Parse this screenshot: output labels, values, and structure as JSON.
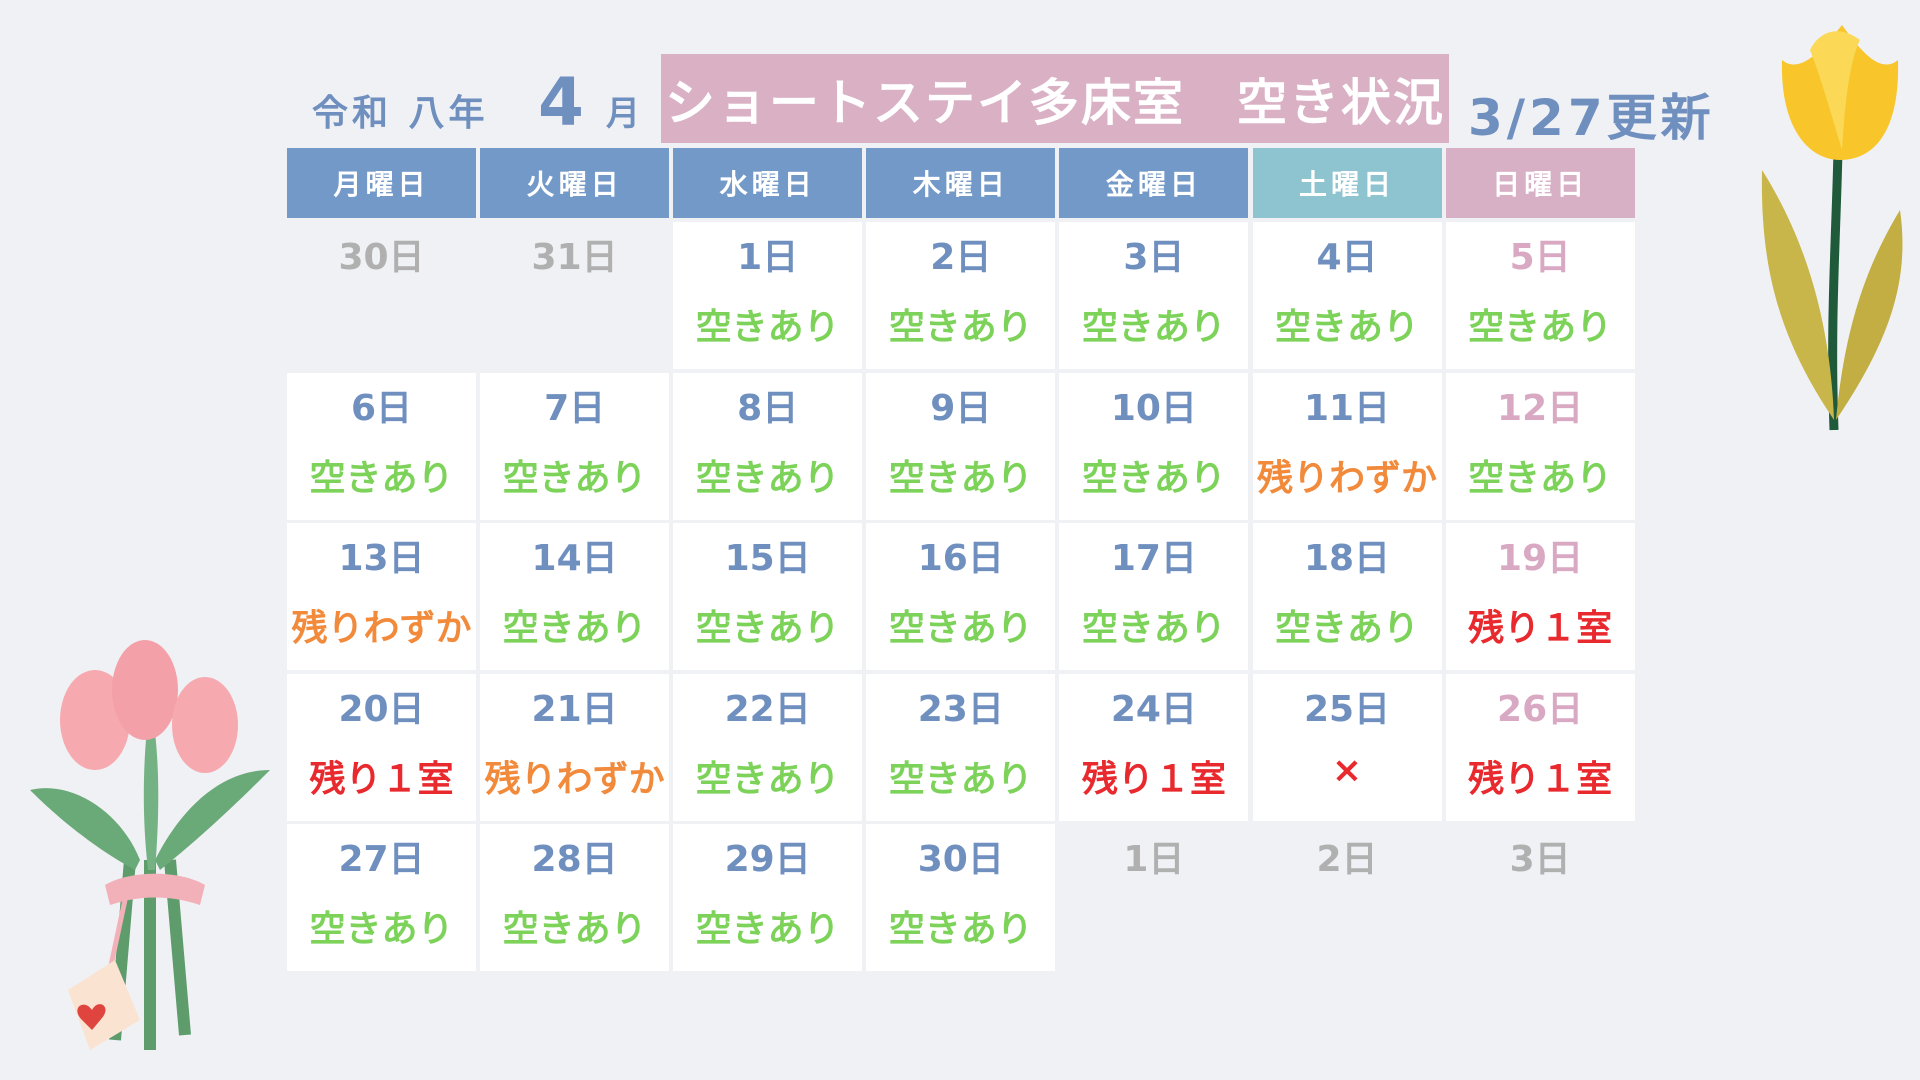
{
  "header": {
    "era": "令和 八年",
    "month_number": "4",
    "month_suffix": "月",
    "title": "ショートステイ多床室　空き状況",
    "updated": "3/27更新"
  },
  "weekdays": [
    "月曜日",
    "火曜日",
    "水曜日",
    "木曜日",
    "金曜日",
    "土曜日",
    "日曜日"
  ],
  "weeks": [
    [
      {
        "date": "30日"
      },
      {
        "date": "31日"
      },
      {
        "date": "1日",
        "status": "空きあり",
        "status_color": "#7dd35a"
      },
      {
        "date": "2日",
        "status": "空きあり",
        "status_color": "#7dd35a"
      },
      {
        "date": "3日",
        "status": "空きあり",
        "status_color": "#7dd35a"
      },
      {
        "date": "4日",
        "status": "空きあり",
        "status_color": "#7dd35a"
      },
      {
        "date": "5日",
        "status": "空きあり",
        "status_color": "#7dd35a"
      }
    ],
    [
      {
        "date": "6日",
        "status": "空きあり",
        "status_color": "#7dd35a"
      },
      {
        "date": "7日",
        "status": "空きあり",
        "status_color": "#7dd35a"
      },
      {
        "date": "8日",
        "status": "空きあり",
        "status_color": "#7dd35a"
      },
      {
        "date": "9日",
        "status": "空きあり",
        "status_color": "#7dd35a"
      },
      {
        "date": "10日",
        "status": "空きあり",
        "status_color": "#7dd35a"
      },
      {
        "date": "11日",
        "status": "残りわずか",
        "status_color": "#f28a3c"
      },
      {
        "date": "12日",
        "status": "空きあり",
        "status_color": "#7dd35a"
      }
    ],
    [
      {
        "date": "13日",
        "status": "残りわずか",
        "status_color": "#f28a3c"
      },
      {
        "date": "14日",
        "status": "空きあり",
        "status_color": "#7dd35a"
      },
      {
        "date": "15日",
        "status": "空きあり",
        "status_color": "#7dd35a"
      },
      {
        "date": "16日",
        "status": "空きあり",
        "status_color": "#7dd35a"
      },
      {
        "date": "17日",
        "status": "空きあり",
        "status_color": "#7dd35a"
      },
      {
        "date": "18日",
        "status": "空きあり",
        "status_color": "#7dd35a"
      },
      {
        "date": "19日",
        "status": "残り１室",
        "status_color": "#e8292e"
      }
    ],
    [
      {
        "date": "20日",
        "status": "残り１室",
        "status_color": "#e8292e"
      },
      {
        "date": "21日",
        "status": "残りわずか",
        "status_color": "#f28a3c"
      },
      {
        "date": "22日",
        "status": "空きあり",
        "status_color": "#7dd35a"
      },
      {
        "date": "23日",
        "status": "空きあり",
        "status_color": "#7dd35a"
      },
      {
        "date": "24日",
        "status": "残り１室",
        "status_color": "#e8292e"
      },
      {
        "date": "25日",
        "status": "×",
        "status_color": "#e8292e"
      },
      {
        "date": "26日",
        "status": "残り１室",
        "status_color": "#e8292e"
      }
    ],
    [
      {
        "date": "27日",
        "status": "空きあり",
        "status_color": "#7dd35a"
      },
      {
        "date": "28日",
        "status": "空きあり",
        "status_color": "#7dd35a"
      },
      {
        "date": "29日",
        "status": "空きあり",
        "status_color": "#7dd35a"
      },
      {
        "date": "30日",
        "status": "空きあり",
        "status_color": "#7dd35a"
      },
      {
        "date": "1日"
      },
      {
        "date": "2日"
      },
      {
        "date": "3日"
      }
    ]
  ]
}
